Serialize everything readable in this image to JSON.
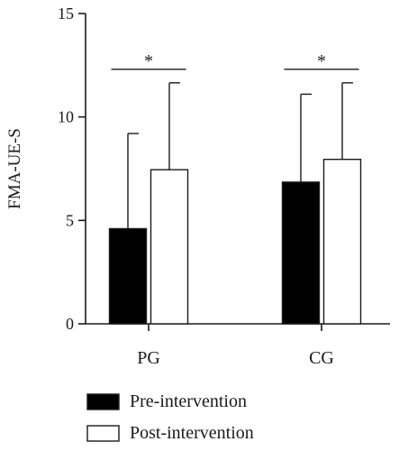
{
  "chart_data": {
    "type": "bar",
    "ylabel": "FMA-UE-S",
    "xlabel": "",
    "ylim": [
      0,
      15
    ],
    "yticks": [
      0,
      5,
      10,
      15
    ],
    "categories": [
      "PG",
      "CG"
    ],
    "series": [
      {
        "name": "Pre-intervention",
        "fill": "#000000",
        "values": [
          4.6,
          6.85
        ],
        "error": [
          4.6,
          4.25
        ]
      },
      {
        "name": "Post-intervention",
        "fill": "#ffffff",
        "values": [
          7.45,
          7.95
        ],
        "error": [
          4.2,
          3.7
        ]
      }
    ],
    "significance": [
      {
        "category": "PG",
        "label": "*"
      },
      {
        "category": "CG",
        "label": "*"
      }
    ],
    "legend_position": "bottom",
    "grid": false
  }
}
